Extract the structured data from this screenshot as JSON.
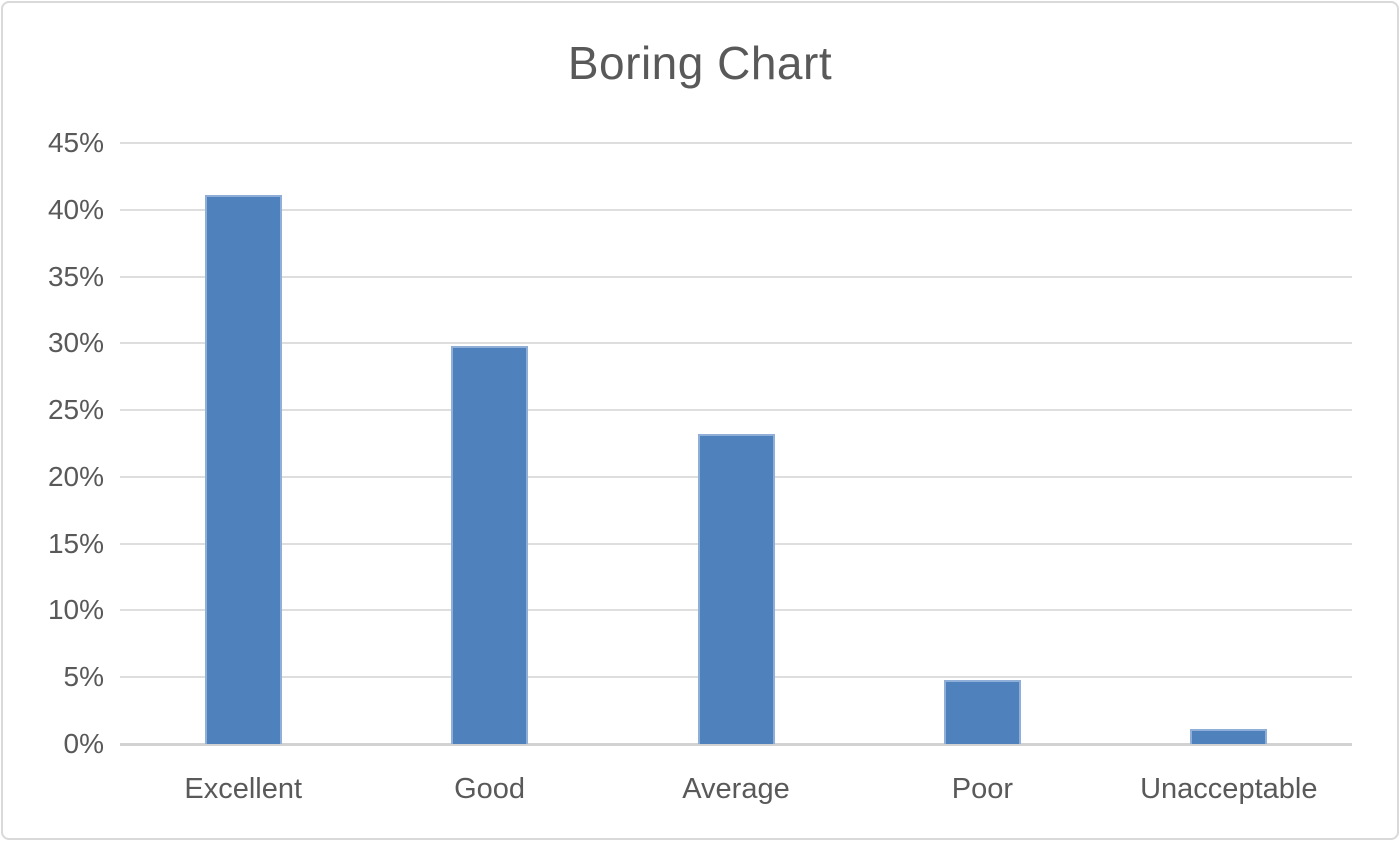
{
  "chart_data": {
    "type": "bar",
    "title": "Boring Chart",
    "categories": [
      "Excellent",
      "Good",
      "Average",
      "Poor",
      "Unacceptable"
    ],
    "values": [
      41.1,
      29.8,
      23.2,
      4.8,
      1.1
    ],
    "xlabel": "",
    "ylabel": "",
    "ylim": [
      0,
      45
    ],
    "ytick_step": 5,
    "ytick_labels": [
      "45%",
      "40%",
      "35%",
      "30%",
      "25%",
      "20%",
      "15%",
      "10%",
      "5%",
      "0%"
    ],
    "grid": true,
    "legend": false,
    "colors": {
      "bar_fill": "#4F81BD",
      "bar_border": "#8FAFD9",
      "gridline": "#DEDEDE",
      "axis_line": "#D2D2D2",
      "text": "#595959",
      "frame_border": "#D9D9D9",
      "background": "#FFFFFF"
    }
  }
}
